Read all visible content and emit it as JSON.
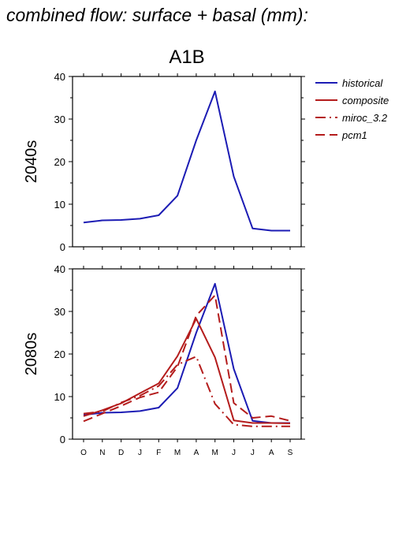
{
  "page": {
    "title": "combined flow: surface + basal (mm):"
  },
  "colors": {
    "historical": "#1c1cb4",
    "future": "#b41c1c",
    "axis": "#000000"
  },
  "chart_data": [
    {
      "type": "line",
      "title": "A1B",
      "panel_label": "2040s",
      "categories": [
        "O",
        "N",
        "D",
        "J",
        "F",
        "M",
        "A",
        "M",
        "J",
        "J",
        "A",
        "S"
      ],
      "ylim": [
        0,
        40
      ],
      "yticks": [
        0,
        10,
        20,
        30,
        40
      ],
      "legend_position": "right",
      "series": [
        {
          "name": "historical",
          "style": "solid",
          "color": "#1c1cb4",
          "values": [
            5.7,
            6.2,
            6.3,
            6.6,
            7.4,
            12,
            25,
            36.5,
            16.5,
            4.3,
            3.8,
            3.8
          ]
        }
      ]
    },
    {
      "type": "line",
      "title": "",
      "panel_label": "2080s",
      "categories": [
        "O",
        "N",
        "D",
        "J",
        "F",
        "M",
        "A",
        "M",
        "J",
        "J",
        "A",
        "S"
      ],
      "ylim": [
        0,
        40
      ],
      "yticks": [
        0,
        10,
        20,
        30,
        40
      ],
      "series": [
        {
          "name": "historical",
          "style": "solid",
          "color": "#1c1cb4",
          "values": [
            5.7,
            6.2,
            6.3,
            6.6,
            7.4,
            12,
            25,
            36.5,
            16.5,
            4.3,
            3.8,
            3.8
          ]
        },
        {
          "name": "composite",
          "style": "solid",
          "color": "#b41c1c",
          "values": [
            5.4,
            6.8,
            8.4,
            10.8,
            13.1,
            19.5,
            28.3,
            19.2,
            4.4,
            3.8,
            3.8,
            3.7
          ]
        },
        {
          "name": "miroc_3.2",
          "style": "dashdot",
          "color": "#b41c1c",
          "values": [
            6.0,
            6.5,
            8.6,
            10.2,
            12.5,
            17.5,
            19.4,
            8.3,
            3.4,
            3.0,
            3.0,
            3.0
          ]
        },
        {
          "name": "pcm1",
          "style": "dash",
          "color": "#b41c1c",
          "values": [
            4.2,
            6.0,
            7.8,
            9.8,
            11.0,
            17.0,
            29.0,
            33.8,
            8.5,
            5.0,
            5.4,
            4.3
          ]
        }
      ]
    }
  ]
}
